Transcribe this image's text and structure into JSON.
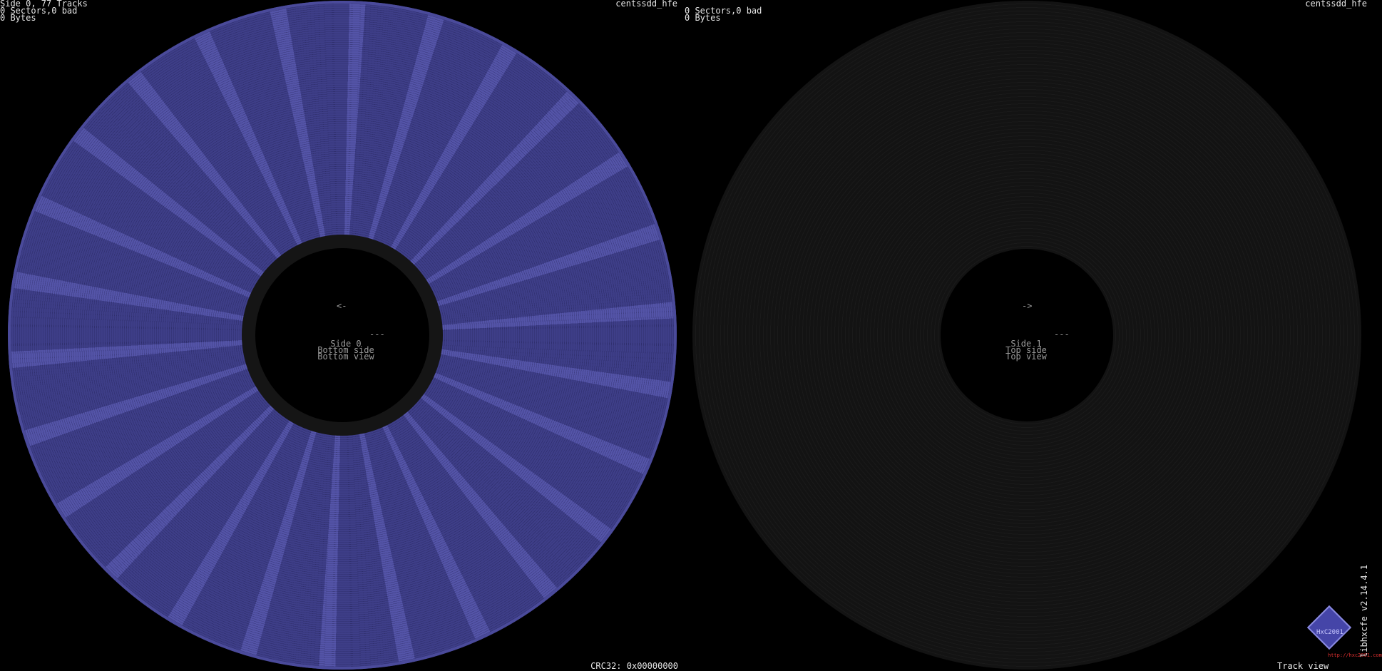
{
  "left": {
    "info": [
      "Side 0, 77 Tracks",
      "0 Sectors,0 bad",
      "0 Bytes"
    ],
    "filename": "centssdd_hfe",
    "arrow": "<-",
    "dash": "---",
    "side": [
      "Side 0",
      "Bottom side",
      "Bottom view"
    ],
    "crc": "CRC32: 0x00000000"
  },
  "right": {
    "info": [
      "0 Sectors,0 bad",
      "0 Bytes"
    ],
    "filename": "centssdd_hfe",
    "arrow": "->",
    "dash": "---",
    "side": [
      "Side 1",
      "Top side",
      "Top view"
    ]
  },
  "footer": {
    "mode": "Track view",
    "version": "libhxcfe v2.14.4.1",
    "url": "http://hxc2001.com",
    "logo": "HxC2001"
  }
}
